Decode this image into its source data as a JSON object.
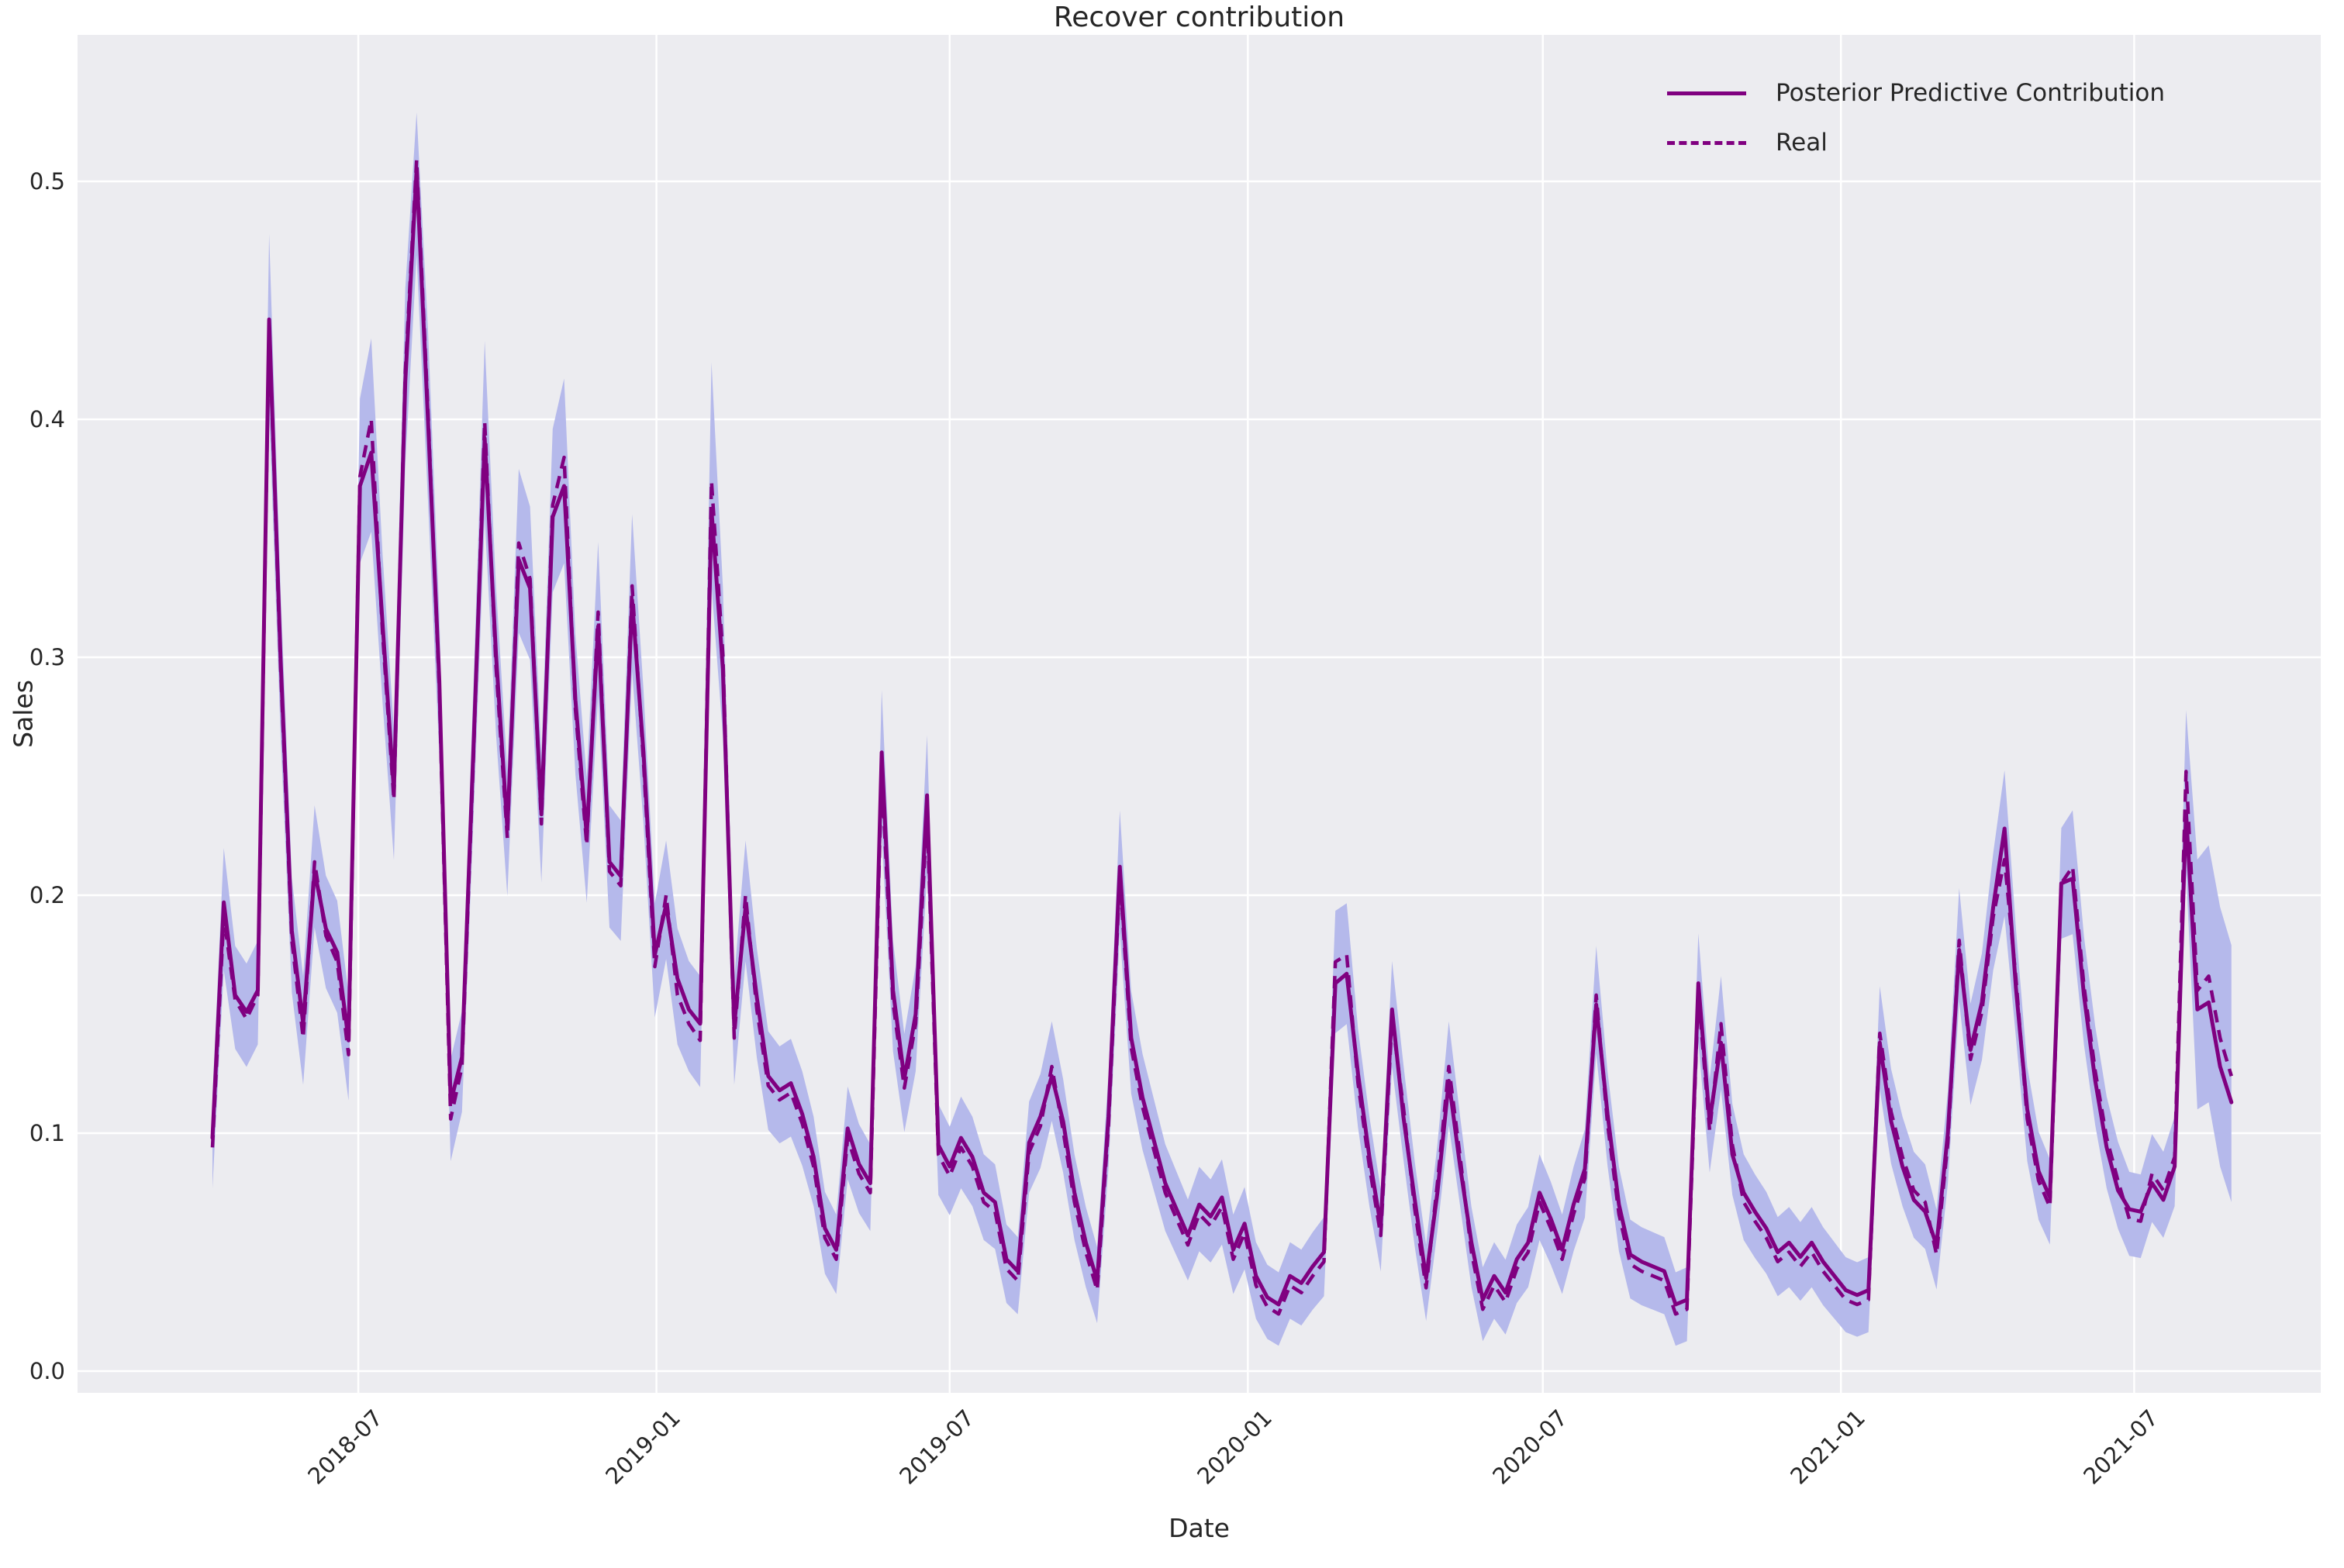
{
  "title": "Recover contribution",
  "axes": {
    "xlabel": "Date",
    "ylabel": "Sales"
  },
  "y_tick_labels": [
    "0.0",
    "0.1",
    "0.2",
    "0.3",
    "0.4",
    "0.5"
  ],
  "x_ticks": [
    {
      "label": "2018-07",
      "day": 90
    },
    {
      "label": "2019-01",
      "day": 274
    },
    {
      "label": "2019-07",
      "day": 455
    },
    {
      "label": "2020-01",
      "day": 639
    },
    {
      "label": "2020-07",
      "day": 821
    },
    {
      "label": "2021-01",
      "day": 1005
    },
    {
      "label": "2021-07",
      "day": 1186
    }
  ],
  "colors": {
    "line": "#800080",
    "band": "#b5b9eb",
    "plot_bg": "#ececf0",
    "figure_bg": "#ffffff",
    "grid": "#ffffff",
    "text": "#262626"
  },
  "chart_data": {
    "type": "line",
    "title": "Recover contribution",
    "xlabel": "Date",
    "ylabel": "Sales",
    "x_start_date": "2018-04-02",
    "x_interval_days": 7,
    "n_points": 179,
    "ylim": [
      -0.009,
      0.562
    ],
    "y_ticks": [
      0.0,
      0.1,
      0.2,
      0.3,
      0.4,
      0.5
    ],
    "grid": true,
    "legend_position": "upper right",
    "series": [
      {
        "name": "Posterior Predictive Contribution",
        "style": "solid",
        "color": "#800080",
        "values": [
          0.098,
          0.197,
          0.158,
          0.151,
          0.16,
          0.442,
          0.3,
          0.185,
          0.146,
          0.21,
          0.186,
          0.176,
          0.139,
          0.372,
          0.386,
          0.314,
          0.244,
          0.416,
          0.505,
          0.4,
          0.29,
          0.113,
          0.132,
          0.26,
          0.392,
          0.301,
          0.228,
          0.341,
          0.329,
          0.234,
          0.359,
          0.372,
          0.282,
          0.225,
          0.313,
          0.214,
          0.208,
          0.324,
          0.26,
          0.175,
          0.196,
          0.165,
          0.152,
          0.146,
          0.362,
          0.295,
          0.145,
          0.195,
          0.157,
          0.124,
          0.118,
          0.121,
          0.108,
          0.09,
          0.06,
          0.051,
          0.102,
          0.087,
          0.079,
          0.26,
          0.16,
          0.123,
          0.15,
          0.242,
          0.095,
          0.086,
          0.098,
          0.09,
          0.075,
          0.071,
          0.047,
          0.042,
          0.096,
          0.107,
          0.124,
          0.105,
          0.075,
          0.054,
          0.038,
          0.107,
          0.212,
          0.14,
          0.115,
          0.097,
          0.079,
          0.068,
          0.057,
          0.07,
          0.065,
          0.073,
          0.051,
          0.062,
          0.04,
          0.031,
          0.028,
          0.04,
          0.037,
          0.044,
          0.05,
          0.163,
          0.167,
          0.125,
          0.09,
          0.061,
          0.152,
          0.107,
          0.072,
          0.039,
          0.075,
          0.122,
          0.086,
          0.054,
          0.03,
          0.04,
          0.033,
          0.047,
          0.054,
          0.075,
          0.064,
          0.051,
          0.07,
          0.085,
          0.154,
          0.108,
          0.07,
          0.049,
          0.046,
          0.044,
          0.042,
          0.028,
          0.03,
          0.163,
          0.105,
          0.138,
          0.091,
          0.075,
          0.067,
          0.06,
          0.05,
          0.054,
          0.048,
          0.054,
          0.046,
          0.04,
          0.034,
          0.032,
          0.034,
          0.138,
          0.105,
          0.086,
          0.072,
          0.067,
          0.053,
          0.1,
          0.177,
          0.135,
          0.155,
          0.195,
          0.228,
          0.161,
          0.11,
          0.084,
          0.073,
          0.205,
          0.207,
          0.158,
          0.122,
          0.094,
          0.076,
          0.068,
          0.067,
          0.079,
          0.072,
          0.086,
          0.235,
          0.152,
          0.155,
          0.128,
          0.113
        ]
      },
      {
        "name": "Real",
        "style": "dashed",
        "color": "#800080",
        "values": [
          0.094,
          0.191,
          0.156,
          0.148,
          0.158,
          0.44,
          0.296,
          0.181,
          0.14,
          0.214,
          0.183,
          0.172,
          0.133,
          0.376,
          0.4,
          0.31,
          0.24,
          0.42,
          0.509,
          0.404,
          0.286,
          0.106,
          0.128,
          0.256,
          0.399,
          0.296,
          0.224,
          0.348,
          0.333,
          0.23,
          0.364,
          0.384,
          0.278,
          0.221,
          0.319,
          0.21,
          0.204,
          0.33,
          0.256,
          0.17,
          0.2,
          0.158,
          0.146,
          0.139,
          0.374,
          0.301,
          0.14,
          0.2,
          0.152,
          0.12,
          0.114,
          0.117,
          0.104,
          0.086,
          0.056,
          0.047,
          0.098,
          0.083,
          0.075,
          0.252,
          0.155,
          0.119,
          0.146,
          0.234,
          0.091,
          0.082,
          0.094,
          0.086,
          0.071,
          0.067,
          0.043,
          0.038,
          0.092,
          0.103,
          0.128,
          0.101,
          0.071,
          0.05,
          0.034,
          0.103,
          0.208,
          0.136,
          0.111,
          0.093,
          0.075,
          0.064,
          0.053,
          0.066,
          0.061,
          0.069,
          0.047,
          0.058,
          0.036,
          0.027,
          0.024,
          0.036,
          0.033,
          0.04,
          0.046,
          0.172,
          0.175,
          0.121,
          0.086,
          0.057,
          0.148,
          0.111,
          0.068,
          0.035,
          0.079,
          0.128,
          0.09,
          0.05,
          0.026,
          0.036,
          0.029,
          0.043,
          0.05,
          0.071,
          0.06,
          0.047,
          0.066,
          0.081,
          0.158,
          0.104,
          0.066,
          0.045,
          0.042,
          0.04,
          0.038,
          0.024,
          0.026,
          0.159,
          0.101,
          0.146,
          0.095,
          0.071,
          0.063,
          0.056,
          0.046,
          0.05,
          0.044,
          0.05,
          0.042,
          0.036,
          0.03,
          0.028,
          0.03,
          0.142,
          0.109,
          0.09,
          0.076,
          0.071,
          0.049,
          0.096,
          0.181,
          0.131,
          0.151,
          0.191,
          0.215,
          0.165,
          0.106,
          0.08,
          0.069,
          0.205,
          0.212,
          0.162,
          0.126,
          0.098,
          0.08,
          0.064,
          0.063,
          0.083,
          0.076,
          0.09,
          0.252,
          0.16,
          0.166,
          0.14,
          0.124
        ]
      }
    ],
    "uncertainty_band": {
      "color": "#b5b9eb",
      "halfwidth_rule": {
        "base": 0.012,
        "scale": 0.055,
        "max": 0.036,
        "peak_cap_value": 0.45,
        "peak_cap_half_up": 0.02,
        "special_up": {
          "44": 0.05
        },
        "tail_from_index": 175,
        "tail_halfwidth_up": 0.055,
        "tail_halfwidth_down": 0.042
      }
    }
  }
}
